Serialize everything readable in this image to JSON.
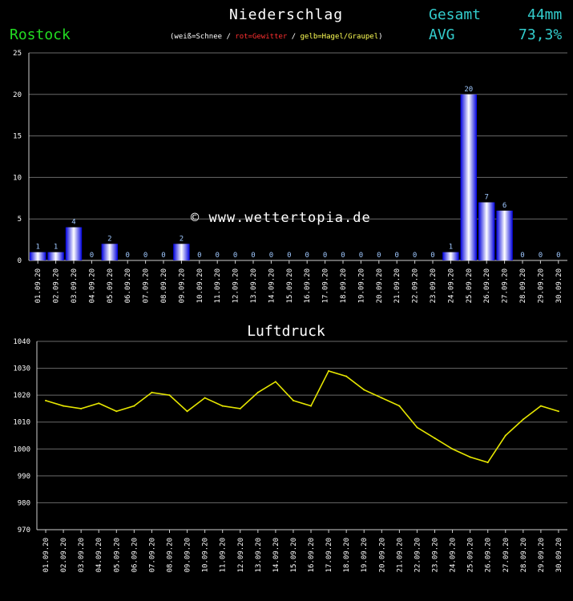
{
  "header": {
    "title": "Niederschlag",
    "station": "Rostock",
    "legend": {
      "open": "(",
      "snow": "weiß=Schnee",
      "sep1": " / ",
      "storm": "rot=Gewitter",
      "sep2": " / ",
      "hail": "gelb=Hagel/Graupel",
      "close": ")"
    },
    "gesamt_label": "Gesamt",
    "gesamt_value": "44mm",
    "avg_label": "AVG",
    "avg_value": "73,3%"
  },
  "watermark": "© www.wettertopia.de",
  "colors": {
    "bar": "#2a2aff",
    "pressure_line": "#e6e600",
    "station": "#22dd22",
    "stats": "#33cccc"
  },
  "chart_data": [
    {
      "type": "bar",
      "title": "",
      "xlabel": "",
      "ylabel": "",
      "ylim": [
        0,
        25
      ],
      "yticks": [
        0,
        5,
        10,
        15,
        20,
        25
      ],
      "grid": true,
      "categories": [
        "01.09.20",
        "02.09.20",
        "03.09.20",
        "04.09.20",
        "05.09.20",
        "06.09.20",
        "07.09.20",
        "08.09.20",
        "09.09.20",
        "10.09.20",
        "11.09.20",
        "12.09.20",
        "13.09.20",
        "14.09.20",
        "15.09.20",
        "16.09.20",
        "17.09.20",
        "18.09.20",
        "19.09.20",
        "20.09.20",
        "21.09.20",
        "22.09.20",
        "23.09.20",
        "24.09.20",
        "25.09.20",
        "26.09.20",
        "27.09.20",
        "28.09.20",
        "29.09.20",
        "30.09.20"
      ],
      "values": [
        1,
        1,
        4,
        0,
        2,
        0,
        0,
        0,
        2,
        0,
        0,
        0,
        0,
        0,
        0,
        0,
        0,
        0,
        0,
        0,
        0,
        0,
        0,
        1,
        20,
        7,
        6,
        0,
        0,
        0
      ]
    },
    {
      "type": "line",
      "title": "Luftdruck",
      "xlabel": "",
      "ylabel": "",
      "ylim": [
        970,
        1040
      ],
      "yticks": [
        970,
        980,
        990,
        1000,
        1010,
        1020,
        1030,
        1040
      ],
      "grid": true,
      "categories": [
        "01.09.20",
        "02.09.20",
        "03.09.20",
        "04.09.20",
        "05.09.20",
        "06.09.20",
        "07.09.20",
        "08.09.20",
        "09.09.20",
        "10.09.20",
        "11.09.20",
        "12.09.20",
        "13.09.20",
        "14.09.20",
        "15.09.20",
        "16.09.20",
        "17.09.20",
        "18.09.20",
        "19.09.20",
        "20.09.20",
        "21.09.20",
        "22.09.20",
        "23.09.20",
        "24.09.20",
        "25.09.20",
        "26.09.20",
        "27.09.20",
        "28.09.20",
        "29.09.20",
        "30.09.20"
      ],
      "values": [
        1018,
        1016,
        1015,
        1017,
        1014,
        1016,
        1021,
        1020,
        1014,
        1019,
        1016,
        1015,
        1021,
        1025,
        1018,
        1016,
        1029,
        1027,
        1022,
        1019,
        1016,
        1008,
        1004,
        1000,
        997,
        995,
        1005,
        1011,
        1016,
        1014
      ]
    }
  ]
}
